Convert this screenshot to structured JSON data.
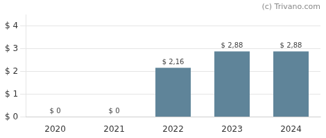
{
  "chart_data": {
    "type": "bar",
    "annotation": "(c) Trivano.com",
    "categories": [
      "2020",
      "2021",
      "2022",
      "2023",
      "2024"
    ],
    "values": [
      0,
      0,
      2.16,
      2.88,
      2.88
    ],
    "value_labels": [
      "$ 0",
      "$ 0",
      "$ 2,16",
      "$ 2,88",
      "$ 2,88"
    ],
    "data_labels": true,
    "color": "#5f8499",
    "ylim": [
      0,
      4.5
    ],
    "yticks": [
      {
        "value": 0,
        "label": "$ 0"
      },
      {
        "value": 1,
        "label": "$ 1"
      },
      {
        "value": 2,
        "label": "$ 2"
      },
      {
        "value": 3,
        "label": "$ 3"
      },
      {
        "value": 4,
        "label": "$ 4"
      }
    ],
    "grid": true
  }
}
